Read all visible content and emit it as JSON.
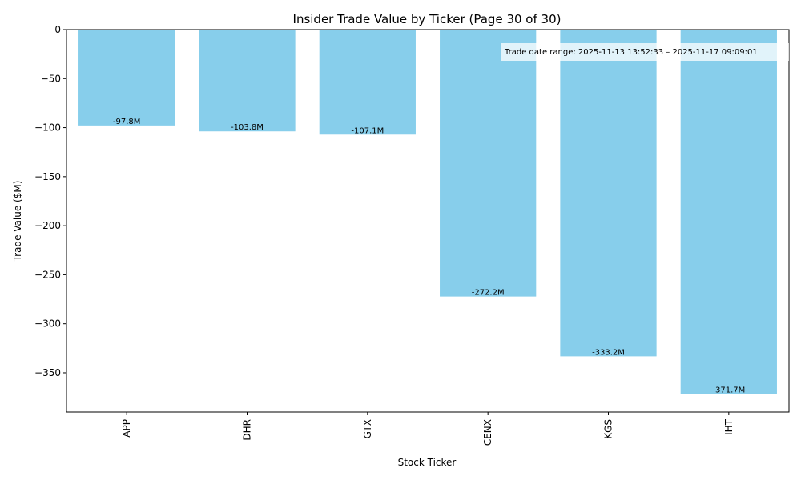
{
  "chart_data": {
    "type": "bar",
    "title": "Insider Trade Value by Ticker (Page 30 of 30)",
    "xlabel": "Stock Ticker",
    "ylabel": "Trade Value ($M)",
    "categories": [
      "APP",
      "DHR",
      "GTX",
      "CENX",
      "KGS",
      "IHT"
    ],
    "values": [
      -97.8,
      -103.8,
      -107.1,
      -272.2,
      -333.2,
      -371.7
    ],
    "data_labels": [
      "-97.8M",
      "-103.8M",
      "-107.1M",
      "-272.2M",
      "-333.2M",
      "-371.7M"
    ],
    "ylim": [
      -390,
      0
    ],
    "yticks": [
      0,
      -50,
      -100,
      -150,
      -200,
      -250,
      -300,
      -350
    ],
    "ytick_labels": [
      "0",
      "−50",
      "−100",
      "−150",
      "−200",
      "−250",
      "−300",
      "−350"
    ],
    "bar_color": "#87ceeb",
    "grid": false,
    "annotation": "Trade date range: 2025-11-13 13:52:33 – 2025-11-17 09:09:01",
    "annotation_position": "top-right"
  }
}
